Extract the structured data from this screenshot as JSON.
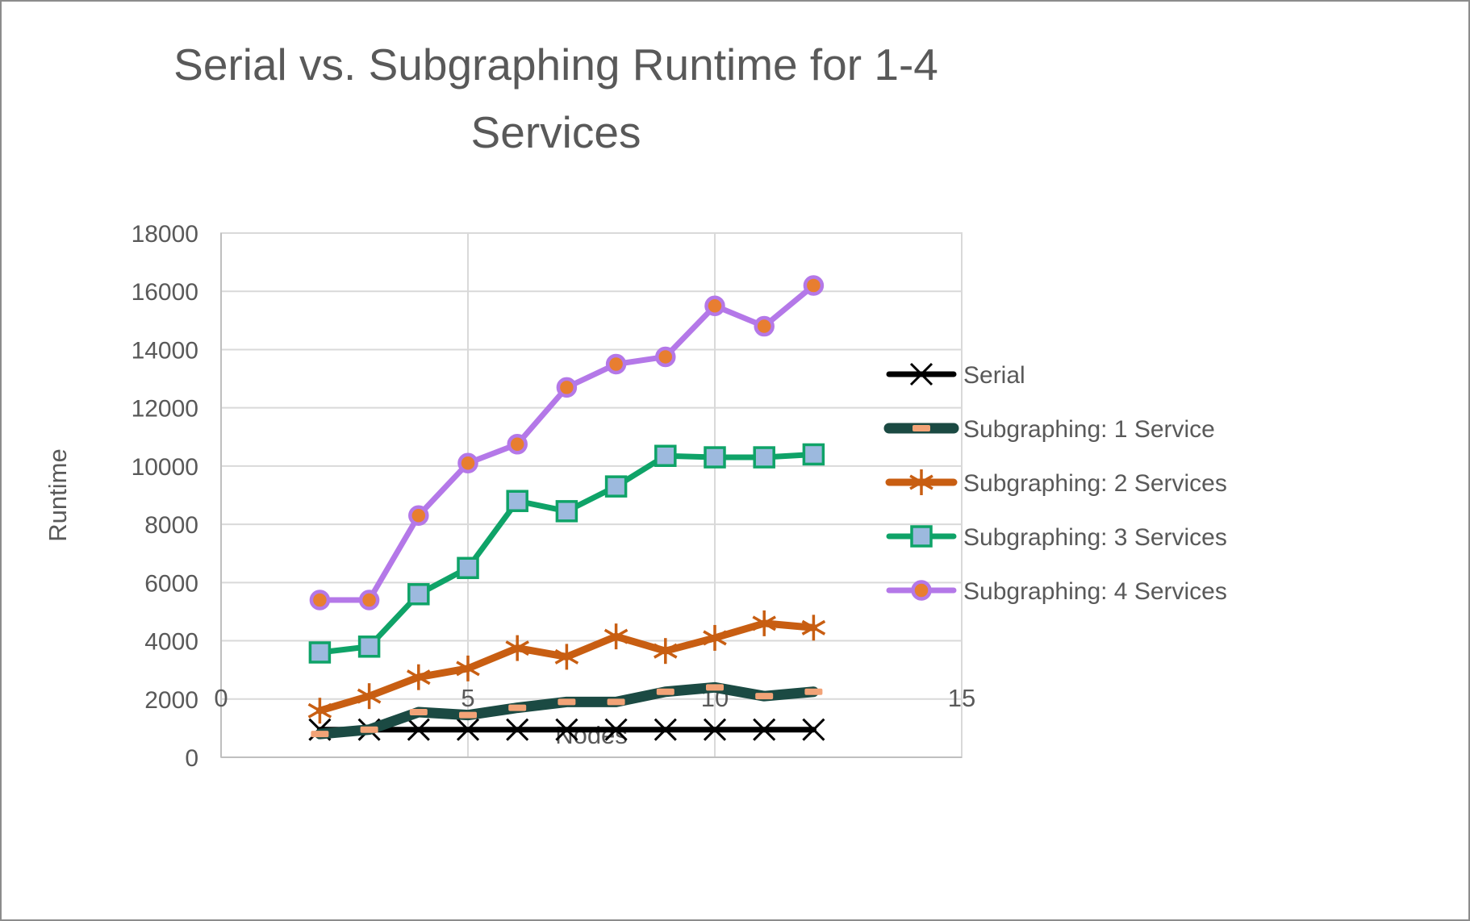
{
  "chart_data": {
    "type": "line",
    "title": "Serial vs. Subgraphing Runtime for 1-4 Services",
    "xlabel": "Nodes",
    "ylabel": "Runtime",
    "x": [
      2,
      3,
      4,
      5,
      6,
      7,
      8,
      9,
      10,
      11,
      12
    ],
    "xlim": [
      0,
      15
    ],
    "ylim": [
      0,
      18000
    ],
    "x_ticks": [
      0,
      5,
      10,
      15
    ],
    "y_tick_step": 2000,
    "grid": true,
    "legend_position": "right",
    "series": [
      {
        "name": "Serial",
        "color": "#000000",
        "marker": "x",
        "marker_color": "#000000",
        "line_width": 7,
        "values": [
          950,
          950,
          950,
          950,
          950,
          950,
          950,
          950,
          950,
          950,
          950
        ]
      },
      {
        "name": "Subgraphing: 1 Service",
        "color": "#1B4A43",
        "marker": "dash",
        "marker_color": "#F2A377",
        "line_width": 13,
        "values": [
          800,
          950,
          1550,
          1450,
          1700,
          1900,
          1900,
          2250,
          2400,
          2100,
          2250
        ]
      },
      {
        "name": "Subgraphing: 2 Services",
        "color": "#C85E12",
        "marker": "asterisk",
        "marker_color": "#C85E12",
        "line_width": 9,
        "values": [
          1600,
          2100,
          2750,
          3050,
          3750,
          3450,
          4150,
          3650,
          4100,
          4600,
          4450
        ]
      },
      {
        "name": "Subgraphing: 3 Services",
        "color": "#0FA368",
        "marker": "square",
        "marker_color": "#9CB9DE",
        "line_width": 7,
        "values": [
          3600,
          3800,
          5600,
          6500,
          8800,
          8450,
          9300,
          10350,
          10300,
          10300,
          10400
        ]
      },
      {
        "name": "Subgraphing: 4 Services",
        "color": "#B478E8",
        "marker": "circle",
        "marker_color": "#E87E30",
        "line_width": 7,
        "values": [
          5400,
          5400,
          8300,
          10100,
          10750,
          12700,
          13500,
          13750,
          15500,
          14800,
          16200
        ]
      }
    ]
  },
  "colors": {
    "text": "#595959",
    "gridline": "#D9D9D9",
    "axis_line": "#BFBFBF",
    "background": "#FFFFFF",
    "frame_border": "#8C8C8C"
  }
}
